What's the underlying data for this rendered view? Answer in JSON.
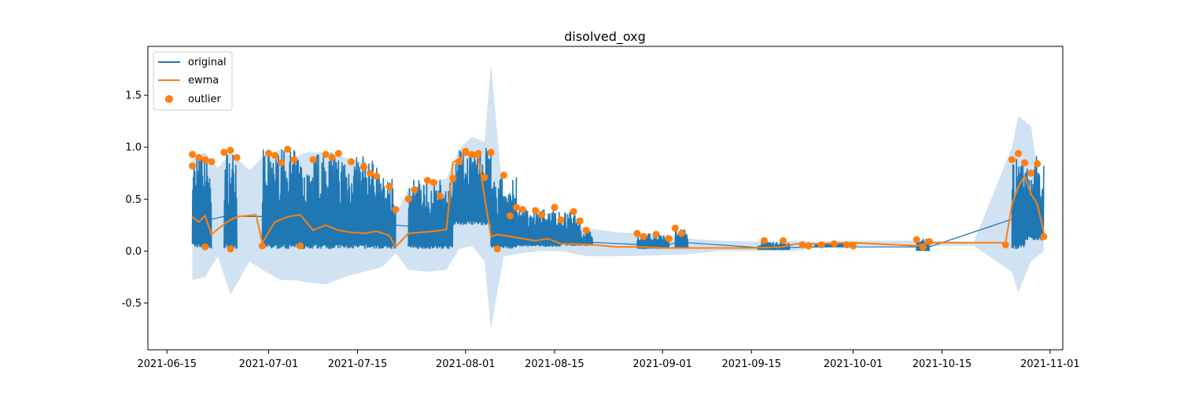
{
  "chart_data": {
    "type": "line",
    "title": "disolved_oxg",
    "xlabel": "",
    "ylabel": "",
    "x_ticks": [
      "2021-06-15",
      "2021-07-01",
      "2021-07-15",
      "2021-08-01",
      "2021-08-15",
      "2021-09-01",
      "2021-09-15",
      "2021-10-01",
      "2021-10-15",
      "2021-11-01"
    ],
    "y_ticks": [
      -0.5,
      0.0,
      0.5,
      1.0,
      1.5
    ],
    "xlim": [
      "2021-06-12",
      "2021-11-03"
    ],
    "ylim": [
      -0.95,
      1.97
    ],
    "grid": false,
    "legend": {
      "placement": "top-left",
      "entries": [
        "original",
        "ewma",
        "outlier"
      ]
    },
    "colors": {
      "original": "#1f77b4",
      "ewma": "#ff7f0e",
      "outlier": "#ff7f0e",
      "band": "#c6dbef"
    },
    "series": [
      {
        "name": "original",
        "style": "line",
        "bursts": [
          {
            "start": "2021-06-19",
            "end": "2021-06-21",
            "low": 0.03,
            "high": 0.95
          },
          {
            "start": "2021-06-21",
            "end": "2021-06-22",
            "low": 0.02,
            "high": 0.9
          },
          {
            "start": "2021-06-24",
            "end": "2021-06-26",
            "low": 0.02,
            "high": 0.98
          },
          {
            "start": "2021-06-30",
            "end": "2021-07-06",
            "low": 0.02,
            "high": 0.98
          },
          {
            "start": "2021-07-06",
            "end": "2021-07-08",
            "low": 0.02,
            "high": 0.85
          },
          {
            "start": "2021-07-08",
            "end": "2021-07-13",
            "low": 0.02,
            "high": 0.95
          },
          {
            "start": "2021-07-13",
            "end": "2021-07-18",
            "low": 0.02,
            "high": 0.92
          },
          {
            "start": "2021-07-18",
            "end": "2021-07-21",
            "low": 0.02,
            "high": 0.73
          },
          {
            "start": "2021-07-23",
            "end": "2021-07-26",
            "low": 0.02,
            "high": 0.7
          },
          {
            "start": "2021-07-26",
            "end": "2021-07-30",
            "low": 0.02,
            "high": 0.7
          },
          {
            "start": "2021-07-30",
            "end": "2021-08-05",
            "low": 0.25,
            "high": 1.0
          },
          {
            "start": "2021-08-05",
            "end": "2021-08-09",
            "low": 0.02,
            "high": 0.72
          },
          {
            "start": "2021-08-09",
            "end": "2021-08-16",
            "low": 0.04,
            "high": 0.42
          },
          {
            "start": "2021-08-16",
            "end": "2021-08-19",
            "low": 0.05,
            "high": 0.38
          },
          {
            "start": "2021-08-19",
            "end": "2021-08-21",
            "low": 0.05,
            "high": 0.2
          },
          {
            "start": "2021-08-28",
            "end": "2021-08-31",
            "low": 0.02,
            "high": 0.17
          },
          {
            "start": "2021-08-31",
            "end": "2021-09-02",
            "low": 0.02,
            "high": 0.16
          },
          {
            "start": "2021-09-03",
            "end": "2021-09-05",
            "low": 0.02,
            "high": 0.22
          },
          {
            "start": "2021-09-16",
            "end": "2021-09-21",
            "low": 0.01,
            "high": 0.09
          },
          {
            "start": "2021-09-25",
            "end": "2021-10-01",
            "low": 0.04,
            "high": 0.08
          },
          {
            "start": "2021-10-11",
            "end": "2021-10-13",
            "low": 0.0,
            "high": 0.12
          },
          {
            "start": "2021-10-26",
            "end": "2021-10-28",
            "low": 0.02,
            "high": 0.9
          },
          {
            "start": "2021-10-28",
            "end": "2021-10-31",
            "low": 0.1,
            "high": 0.92
          }
        ]
      },
      {
        "name": "ewma",
        "style": "line",
        "x": [
          "2021-06-19",
          "2021-06-20",
          "2021-06-21",
          "2021-06-22",
          "2021-06-24",
          "2021-06-25",
          "2021-06-26",
          "2021-06-29",
          "2021-06-30",
          "2021-07-02",
          "2021-07-04",
          "2021-07-06",
          "2021-07-08",
          "2021-07-10",
          "2021-07-12",
          "2021-07-14",
          "2021-07-16",
          "2021-07-18",
          "2021-07-20",
          "2021-07-21",
          "2021-07-23",
          "2021-07-25",
          "2021-07-27",
          "2021-07-29",
          "2021-07-30",
          "2021-08-01",
          "2021-08-03",
          "2021-08-05",
          "2021-08-06",
          "2021-08-08",
          "2021-08-10",
          "2021-08-12",
          "2021-08-14",
          "2021-08-16",
          "2021-08-18",
          "2021-08-21",
          "2021-08-25",
          "2021-08-29",
          "2021-09-01",
          "2021-09-05",
          "2021-09-10",
          "2021-09-15",
          "2021-09-20",
          "2021-09-22",
          "2021-09-25",
          "2021-10-01",
          "2021-10-11",
          "2021-10-13",
          "2021-10-20",
          "2021-10-25",
          "2021-10-26",
          "2021-10-27",
          "2021-10-28",
          "2021-10-29",
          "2021-10-30",
          "2021-10-31"
        ],
        "y": [
          0.33,
          0.28,
          0.34,
          0.16,
          0.26,
          0.3,
          0.33,
          0.35,
          0.08,
          0.28,
          0.33,
          0.35,
          0.2,
          0.25,
          0.2,
          0.18,
          0.17,
          0.19,
          0.15,
          0.04,
          0.17,
          0.18,
          0.19,
          0.21,
          0.85,
          0.93,
          0.9,
          0.14,
          0.16,
          0.14,
          0.12,
          0.1,
          0.12,
          0.07,
          0.07,
          0.06,
          0.04,
          0.04,
          0.03,
          0.03,
          0.03,
          0.03,
          0.04,
          0.07,
          0.07,
          0.08,
          0.05,
          0.08,
          0.08,
          0.08,
          0.45,
          0.62,
          0.72,
          0.55,
          0.45,
          0.18
        ]
      },
      {
        "name": "outlier",
        "style": "scatter",
        "x": [
          "2021-06-19",
          "2021-06-19",
          "2021-06-20",
          "2021-06-21",
          "2021-06-21",
          "2021-06-22",
          "2021-06-24",
          "2021-06-25",
          "2021-06-25",
          "2021-06-26",
          "2021-06-30",
          "2021-07-01",
          "2021-07-02",
          "2021-07-03",
          "2021-07-04",
          "2021-07-05",
          "2021-07-06",
          "2021-07-08",
          "2021-07-10",
          "2021-07-11",
          "2021-07-12",
          "2021-07-14",
          "2021-07-16",
          "2021-07-17",
          "2021-07-18",
          "2021-07-20",
          "2021-07-21",
          "2021-07-23",
          "2021-07-24",
          "2021-07-26",
          "2021-07-27",
          "2021-07-28",
          "2021-07-30",
          "2021-07-31",
          "2021-08-01",
          "2021-08-02",
          "2021-08-03",
          "2021-08-04",
          "2021-08-05",
          "2021-08-06",
          "2021-08-07",
          "2021-08-08",
          "2021-08-09",
          "2021-08-10",
          "2021-08-12",
          "2021-08-13",
          "2021-08-15",
          "2021-08-16",
          "2021-08-18",
          "2021-08-19",
          "2021-08-20",
          "2021-08-28",
          "2021-08-29",
          "2021-08-31",
          "2021-09-02",
          "2021-09-03",
          "2021-09-04",
          "2021-09-17",
          "2021-09-20",
          "2021-09-23",
          "2021-09-24",
          "2021-09-26",
          "2021-09-28",
          "2021-09-30",
          "2021-10-01",
          "2021-10-11",
          "2021-10-12",
          "2021-10-13",
          "2021-10-25",
          "2021-10-26",
          "2021-10-27",
          "2021-10-28",
          "2021-10-29",
          "2021-10-30",
          "2021-10-31"
        ],
        "y": [
          0.93,
          0.82,
          0.9,
          0.88,
          0.04,
          0.86,
          0.95,
          0.97,
          0.02,
          0.9,
          0.05,
          0.94,
          0.92,
          0.85,
          0.98,
          0.88,
          0.05,
          0.88,
          0.93,
          0.9,
          0.94,
          0.86,
          0.81,
          0.75,
          0.72,
          0.62,
          0.4,
          0.5,
          0.59,
          0.68,
          0.66,
          0.53,
          0.7,
          0.86,
          0.96,
          0.93,
          0.94,
          0.71,
          0.95,
          0.02,
          0.73,
          0.34,
          0.42,
          0.4,
          0.39,
          0.35,
          0.42,
          0.3,
          0.38,
          0.29,
          0.2,
          0.17,
          0.14,
          0.16,
          0.12,
          0.22,
          0.17,
          0.1,
          0.1,
          0.06,
          0.05,
          0.06,
          0.07,
          0.06,
          0.05,
          0.11,
          0.04,
          0.09,
          0.06,
          0.88,
          0.94,
          0.85,
          0.75,
          0.84,
          0.14
        ]
      }
    ],
    "band": {
      "name": "confidence band",
      "x": [
        "2021-06-19",
        "2021-06-21",
        "2021-06-23",
        "2021-06-25",
        "2021-06-28",
        "2021-06-30",
        "2021-07-03",
        "2021-07-05",
        "2021-07-07",
        "2021-07-10",
        "2021-07-13",
        "2021-07-16",
        "2021-07-19",
        "2021-07-21",
        "2021-07-23",
        "2021-07-26",
        "2021-07-29",
        "2021-07-31",
        "2021-08-02",
        "2021-08-04",
        "2021-08-05",
        "2021-08-07",
        "2021-08-10",
        "2021-08-13",
        "2021-08-16",
        "2021-08-20",
        "2021-08-25",
        "2021-09-01",
        "2021-09-05",
        "2021-09-10",
        "2021-09-15",
        "2021-09-20",
        "2021-09-22",
        "2021-09-25",
        "2021-10-01",
        "2021-10-11",
        "2021-10-20",
        "2021-10-26",
        "2021-10-27",
        "2021-10-29",
        "2021-10-31"
      ],
      "upper": [
        0.9,
        0.95,
        0.8,
        0.95,
        0.78,
        0.9,
        0.98,
        0.9,
        0.95,
        0.95,
        0.9,
        0.85,
        0.65,
        0.35,
        0.6,
        0.65,
        0.7,
        0.98,
        1.1,
        1.05,
        1.8,
        0.45,
        0.35,
        0.3,
        0.3,
        0.22,
        0.18,
        0.16,
        0.12,
        0.1,
        0.09,
        0.09,
        0.1,
        0.09,
        0.1,
        0.1,
        0.09,
        1.0,
        1.3,
        1.2,
        0.4
      ],
      "lower": [
        -0.28,
        -0.25,
        -0.05,
        -0.42,
        -0.1,
        -0.18,
        -0.28,
        -0.28,
        -0.3,
        -0.32,
        -0.25,
        -0.2,
        -0.15,
        -0.02,
        -0.18,
        -0.2,
        -0.18,
        0.02,
        0.05,
        -0.1,
        -0.75,
        -0.05,
        -0.02,
        0.0,
        0.0,
        -0.05,
        -0.05,
        -0.04,
        -0.03,
        0.0,
        0.0,
        0.0,
        0.0,
        0.03,
        0.05,
        0.05,
        0.05,
        -0.2,
        -0.4,
        -0.1,
        0.0
      ]
    }
  }
}
